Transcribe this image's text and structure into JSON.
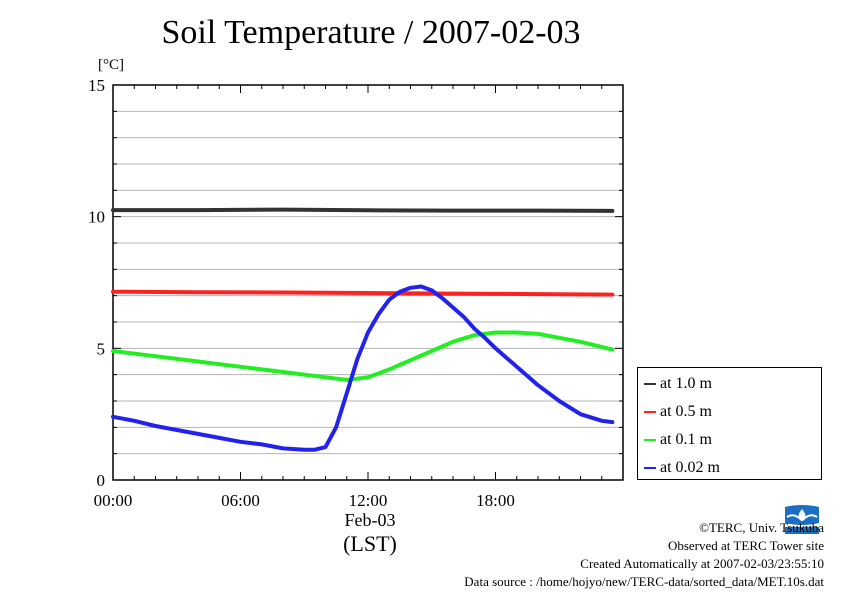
{
  "chart_data": {
    "type": "line",
    "title": "Soil Temperature / 2007-02-03",
    "ylabel": "[°C]",
    "xlabel": "(LST)",
    "x_date_label": "Feb-03",
    "xlim": [
      0,
      24
    ],
    "ylim": [
      0,
      15
    ],
    "x_ticks": [
      0,
      6,
      12,
      18
    ],
    "x_tick_labels": [
      "00:00",
      "06:00",
      "12:00",
      "18:00"
    ],
    "y_ticks": [
      0,
      5,
      10,
      15
    ],
    "y_tick_labels": [
      "0",
      "5",
      "10",
      "15"
    ],
    "grid": "horizontal",
    "legend_position": "bottom-right outside",
    "series": [
      {
        "name": "at 1.0 m",
        "color": "#333333",
        "x": [
          0,
          4,
          8,
          12,
          16,
          20,
          23.5
        ],
        "y": [
          10.25,
          10.25,
          10.27,
          10.24,
          10.23,
          10.23,
          10.22
        ]
      },
      {
        "name": "at 0.5 m",
        "color": "#ff2020",
        "x": [
          0,
          4,
          8,
          12,
          16,
          20,
          23.5
        ],
        "y": [
          7.15,
          7.13,
          7.12,
          7.1,
          7.08,
          7.06,
          7.04
        ]
      },
      {
        "name": "at 0.1 m",
        "color": "#22ee22",
        "x": [
          0,
          2,
          4,
          6,
          8,
          10,
          11,
          12,
          13,
          14,
          15,
          16,
          17,
          18,
          19,
          20,
          21,
          22,
          23,
          23.5
        ],
        "y": [
          4.9,
          4.7,
          4.5,
          4.3,
          4.1,
          3.9,
          3.8,
          3.9,
          4.2,
          4.55,
          4.9,
          5.25,
          5.5,
          5.6,
          5.6,
          5.55,
          5.4,
          5.25,
          5.05,
          4.95
        ]
      },
      {
        "name": "at 0.02 m",
        "color": "#2222ee",
        "x": [
          0,
          1,
          2,
          3,
          4,
          5,
          6,
          7,
          8,
          9,
          9.5,
          10,
          10.5,
          11,
          11.5,
          12,
          12.5,
          13,
          13.5,
          14,
          14.5,
          15,
          15.5,
          16,
          16.5,
          17,
          17.5,
          18,
          19,
          20,
          21,
          22,
          23,
          23.5
        ],
        "y": [
          2.4,
          2.25,
          2.05,
          1.9,
          1.75,
          1.6,
          1.45,
          1.35,
          1.2,
          1.15,
          1.15,
          1.25,
          2.0,
          3.3,
          4.6,
          5.6,
          6.3,
          6.85,
          7.15,
          7.3,
          7.35,
          7.2,
          6.9,
          6.55,
          6.2,
          5.75,
          5.4,
          5.0,
          4.3,
          3.6,
          3.0,
          2.5,
          2.25,
          2.2
        ]
      }
    ]
  },
  "credits": {
    "copyright": "©TERC, Univ. Tsukuba",
    "site": "Observed at TERC Tower site",
    "created": "Created Automatically at 2007-02-03/23:55:10",
    "source": "Data source : /home/hojyo/new/TERC-data/sorted_data/MET.10s.dat"
  },
  "logo": {
    "text": "TERC",
    "color": "#1a6fc4"
  }
}
